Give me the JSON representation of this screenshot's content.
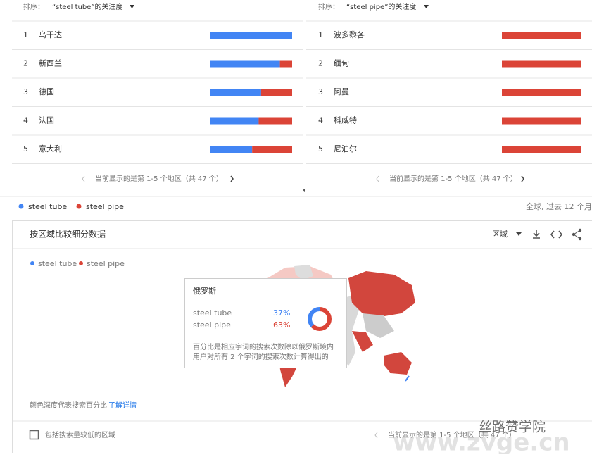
{
  "series": [
    {
      "name": "steel tube",
      "color": "#4285f4"
    },
    {
      "name": "steel pipe",
      "color": "#db4437"
    }
  ],
  "left_panel": {
    "sort_label": "排序：",
    "term": "“steel tube”的关注度",
    "rows": [
      {
        "rank": "1",
        "name": "乌干达",
        "values": [
          100,
          0
        ]
      },
      {
        "rank": "2",
        "name": "新西兰",
        "values": [
          85,
          15
        ]
      },
      {
        "rank": "3",
        "name": "德国",
        "values": [
          62,
          38
        ]
      },
      {
        "rank": "4",
        "name": "法国",
        "values": [
          59,
          41
        ]
      },
      {
        "rank": "5",
        "name": "意大利",
        "values": [
          51,
          49
        ]
      }
    ],
    "pagination": "当前显示的是第 1-5 个地区（共 47 个）"
  },
  "right_panel": {
    "sort_label": "排序：",
    "term": "“steel pipe”的关注度",
    "rows": [
      {
        "rank": "1",
        "name": "波多黎各",
        "values": [
          0,
          100
        ]
      },
      {
        "rank": "2",
        "name": "缅甸",
        "values": [
          0,
          100
        ]
      },
      {
        "rank": "3",
        "name": "阿曼",
        "values": [
          0,
          100
        ]
      },
      {
        "rank": "4",
        "name": "科威特",
        "values": [
          0,
          100
        ]
      },
      {
        "rank": "5",
        "name": "尼泊尔",
        "values": [
          0,
          100
        ]
      }
    ],
    "pagination": "当前显示的是第 1-5 个地区（共 47 个）"
  },
  "scope": "全球, 过去 12 个月",
  "section": {
    "title": "按区域比较细分数据",
    "region_dropdown": "区域",
    "tooltip": {
      "region": "俄罗斯",
      "values": [
        37,
        63
      ],
      "value_labels": [
        "37%",
        "63%"
      ],
      "note": [
        "百分比是相应字词的搜索次数除以俄罗斯境内",
        "用户对所有 2 个字词的搜索次数计算得出的"
      ]
    },
    "color_note": "颜色深度代表搜索百分比",
    "learn_more": "了解详情",
    "checkbox_label": "包括搜索量较低的区域",
    "pagination": "当前显示的是第 1-5 个地区（共 47 个）"
  },
  "watermark": {
    "brand": "丝路赞学院",
    "site": "www.zvge.cn"
  }
}
